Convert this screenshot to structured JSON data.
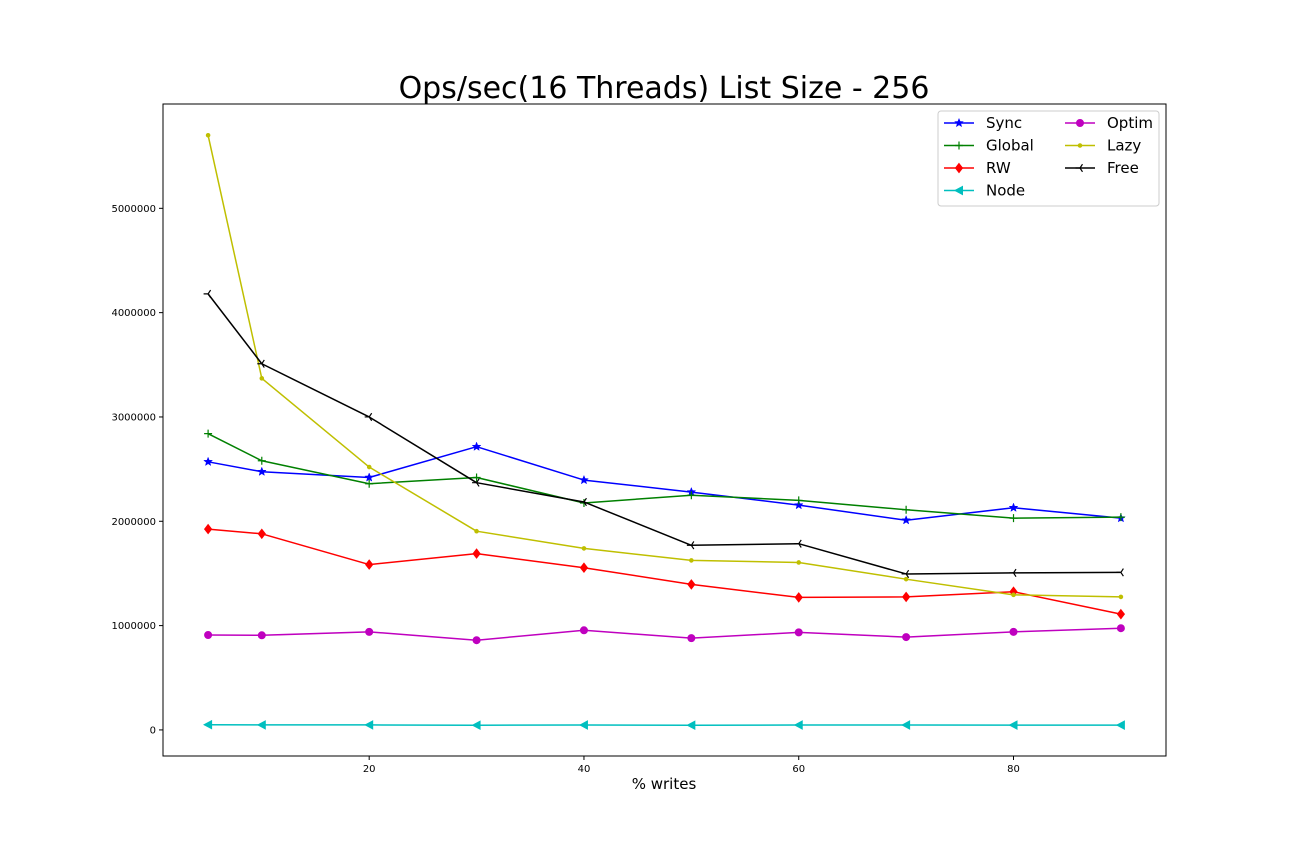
{
  "chart_data": {
    "type": "line",
    "title": "Ops/sec(16 Threads) List Size - 256",
    "xlabel": "% writes",
    "ylabel": "",
    "x": [
      5,
      10,
      20,
      30,
      40,
      50,
      60,
      70,
      80,
      90
    ],
    "xlim": [
      0.8,
      94.2
    ],
    "ylim": [
      -250000,
      6000000
    ],
    "xticks": [
      20,
      40,
      60,
      80
    ],
    "yticks": [
      0,
      1000000,
      2000000,
      3000000,
      4000000,
      5000000
    ],
    "xtick_labels": [
      "20",
      "40",
      "60",
      "80"
    ],
    "ytick_labels": [
      "0",
      "1000000",
      "2000000",
      "3000000",
      "4000000",
      "5000000"
    ],
    "grid": false,
    "legend_position": "top-right",
    "series": [
      {
        "name": "Sync",
        "color": "#0000ff",
        "marker": "star",
        "values": [
          2570000,
          2475000,
          2420000,
          2715000,
          2395000,
          2280000,
          2155000,
          2010000,
          2130000,
          2030000
        ]
      },
      {
        "name": "Global",
        "color": "#008000",
        "marker": "plus",
        "values": [
          2840000,
          2580000,
          2360000,
          2420000,
          2175000,
          2250000,
          2200000,
          2110000,
          2030000,
          2040000
        ]
      },
      {
        "name": "RW",
        "color": "#ff0000",
        "marker": "diamond",
        "values": [
          1925000,
          1880000,
          1585000,
          1690000,
          1555000,
          1395000,
          1270000,
          1275000,
          1325000,
          1110000
        ]
      },
      {
        "name": "Node",
        "color": "#00bfbf",
        "marker": "triangle-left",
        "values": [
          50000,
          48000,
          48000,
          45000,
          47000,
          45000,
          47000,
          47000,
          46000,
          46000
        ]
      },
      {
        "name": "Optim",
        "color": "#bf00bf",
        "marker": "circle",
        "values": [
          910000,
          907000,
          940000,
          860000,
          955000,
          880000,
          935000,
          890000,
          940000,
          975000
        ]
      },
      {
        "name": "Lazy",
        "color": "#bfbf00",
        "marker": "point",
        "values": [
          5700000,
          3370000,
          2520000,
          1905000,
          1740000,
          1625000,
          1605000,
          1445000,
          1295000,
          1275000
        ]
      },
      {
        "name": "Free",
        "color": "#000000",
        "marker": "tri-left",
        "values": [
          4180000,
          3510000,
          3000000,
          2370000,
          2185000,
          1770000,
          1785000,
          1495000,
          1505000,
          1510000
        ]
      }
    ]
  }
}
